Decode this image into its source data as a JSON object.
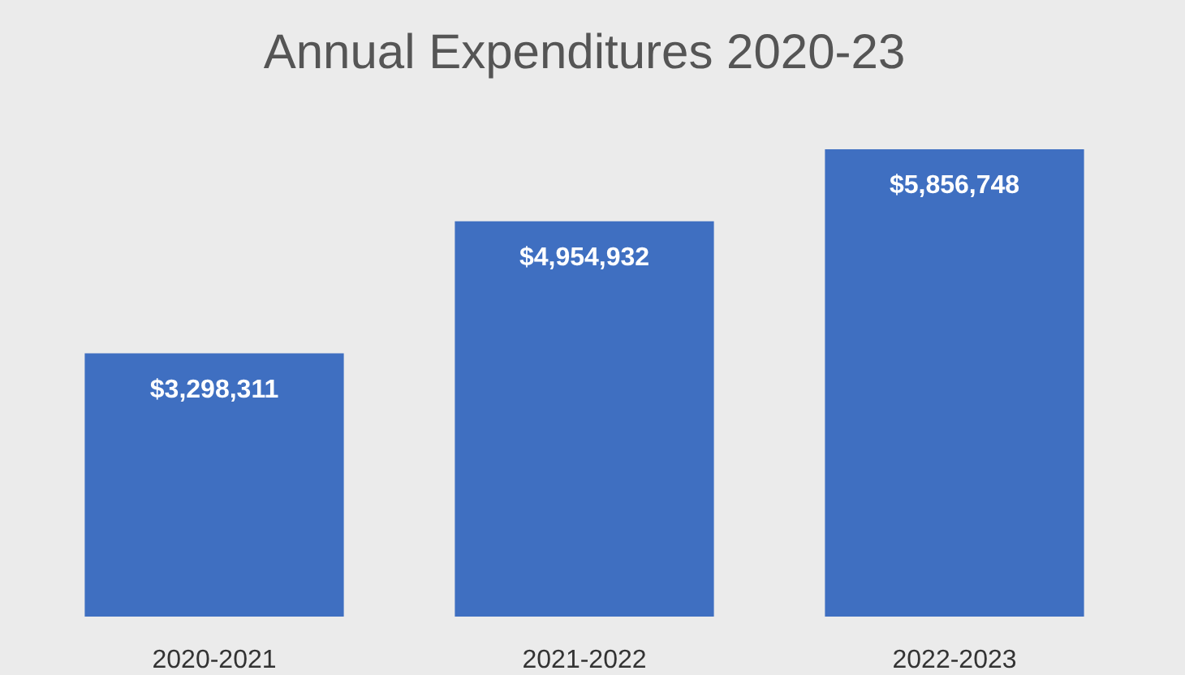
{
  "chart_data": {
    "type": "bar",
    "title": "Annual Expenditures 2020-23",
    "categories": [
      "2020-2021",
      "2021-2022",
      "2022-2023"
    ],
    "values": [
      3298311,
      4954932,
      5856748
    ],
    "value_labels": [
      "$3,298,311",
      "$4,954,932",
      "$5,856,748"
    ],
    "color": "#3f6fc1",
    "tick_labels": "x"
  }
}
